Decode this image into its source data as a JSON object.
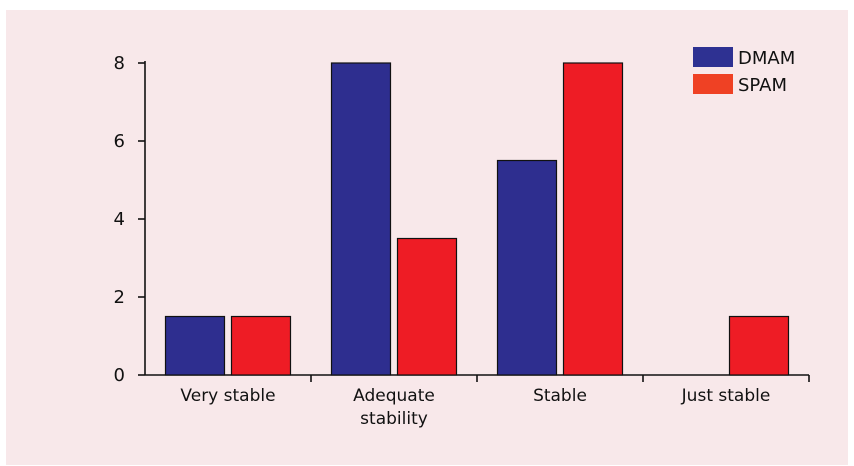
{
  "chart_data": {
    "type": "bar",
    "categories": [
      [
        "Very stable"
      ],
      [
        "Adequate",
        "stability"
      ],
      [
        "Stable"
      ],
      [
        "Just stable"
      ]
    ],
    "series": [
      {
        "name": "DMAM",
        "color": "#2e2e8f",
        "values": [
          1.5,
          8,
          5.5,
          0
        ]
      },
      {
        "name": "SPAM",
        "color": "#ee1c25",
        "values": [
          1.5,
          3.5,
          8,
          1.5
        ]
      }
    ],
    "legend_colors": {
      "DMAM": "#2e3192",
      "SPAM": "#ef4124"
    },
    "yticks": [
      0,
      2,
      4,
      6,
      8
    ],
    "ylim": [
      0,
      8
    ],
    "title": "",
    "xlabel": "",
    "ylabel": "",
    "grid": false,
    "legend_position": "top-right"
  },
  "colors": {
    "background": "#f8e8ea",
    "axis": "#111111"
  }
}
